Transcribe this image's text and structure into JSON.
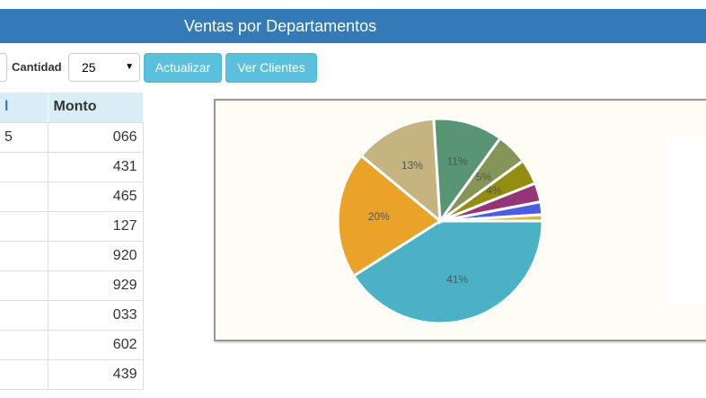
{
  "header": {
    "title": "Ventas por Departamentos"
  },
  "controls": {
    "quantity_label": "Cantidad",
    "quantity_value": "25",
    "buttons": [
      "Actualizar",
      "Ver Clientes"
    ]
  },
  "table": {
    "columns": [
      "l",
      "Monto"
    ],
    "rows": [
      [
        "5",
        "066"
      ],
      [
        null,
        "431"
      ],
      [
        null,
        "465"
      ],
      [
        null,
        "127"
      ],
      [
        null,
        "920"
      ],
      [
        null,
        "929"
      ],
      [
        null,
        "033"
      ],
      [
        null,
        "602"
      ],
      [
        null,
        "439"
      ]
    ]
  },
  "chart_data": {
    "type": "pie",
    "values": [
      41,
      20,
      13,
      11,
      5,
      4,
      3,
      2,
      1
    ],
    "value_labels": [
      "41%",
      "20%",
      "13%",
      "11%",
      "5%",
      "4%",
      null,
      null,
      null
    ],
    "colors": [
      "#4bb2c5",
      "#eaa228",
      "#c5b47f",
      "#579575",
      "#839557",
      "#958c12",
      "#953579",
      "#4b5de4",
      "#d8b83f"
    ]
  }
}
